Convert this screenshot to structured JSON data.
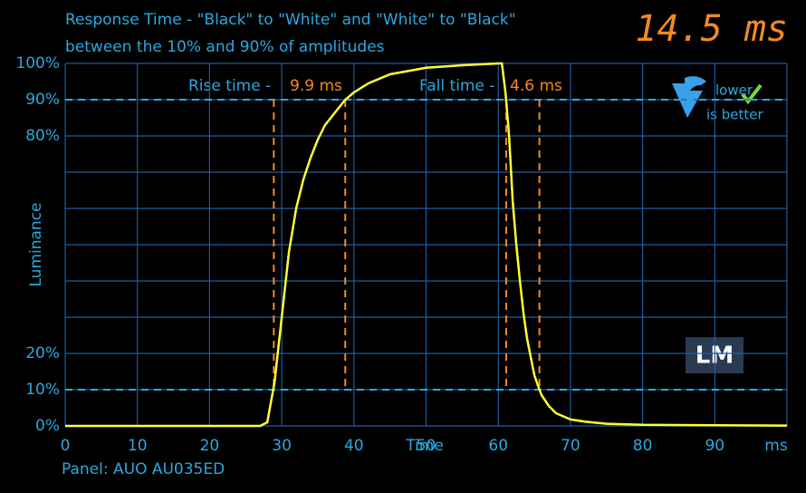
{
  "chart_data": {
    "type": "line",
    "title": "Response Time - \"Black\" to \"White\" and \"White\" to \"Black\"",
    "subtitle": "between the 10% and 90% of amplitudes",
    "total": {
      "value": 14.5,
      "label": "14.5 ms"
    },
    "x_label": "Time",
    "y_label": "Luminance",
    "footer": "Panel: AUO AU035ED",
    "badge": [
      "lower",
      "is better"
    ],
    "logo": "LM",
    "xlim": [
      0,
      100
    ],
    "ylim": [
      0,
      100
    ],
    "xticks": [
      0,
      10,
      20,
      30,
      40,
      50,
      60,
      70,
      80,
      90,
      {
        "value": 100,
        "label": "ms"
      }
    ],
    "yticks": [
      {
        "value": 0,
        "label": "0%"
      },
      {
        "value": 10,
        "label": "10%"
      },
      {
        "value": 20,
        "label": "20%"
      },
      {
        "value": 30,
        "label": null
      },
      {
        "value": 40,
        "label": null
      },
      {
        "value": 50,
        "label": null
      },
      {
        "value": 60,
        "label": null
      },
      {
        "value": 70,
        "label": null
      },
      {
        "value": 80,
        "label": "80%"
      },
      {
        "value": 90,
        "label": "90%"
      },
      {
        "value": 100,
        "label": "100%"
      }
    ],
    "grid": true,
    "hlines": [
      10,
      90
    ],
    "annotations": [
      {
        "text": "Rise time - ",
        "value": 9.9,
        "value_label": "9.9 ms",
        "x": [
          28.9,
          38.8
        ]
      },
      {
        "text": "Fall time - ",
        "value": 4.6,
        "value_label": "4.6 ms",
        "x": [
          61.1,
          65.7
        ]
      }
    ],
    "x": [
      0,
      27,
      28,
      29,
      30,
      31,
      32,
      33,
      34,
      35,
      36,
      38,
      38.8,
      40,
      42,
      45,
      50,
      55,
      60,
      60.5,
      61,
      61.5,
      62,
      62.5,
      63,
      63.5,
      64,
      65,
      65.7,
      66,
      67,
      68,
      70,
      72,
      75,
      80,
      90,
      100
    ],
    "series": [
      {
        "name": "Luminance",
        "color": "#ffff33",
        "values": [
          0,
          0,
          1,
          12,
          30,
          48,
          60,
          68,
          74,
          79,
          83,
          88,
          90,
          92,
          94.5,
          97,
          98.8,
          99.5,
          100,
          100,
          92,
          80,
          62,
          50,
          40,
          31,
          24,
          14,
          10,
          8.5,
          5.5,
          3.5,
          1.8,
          1.2,
          0.6,
          0.3,
          0.2,
          0.1
        ]
      }
    ]
  }
}
